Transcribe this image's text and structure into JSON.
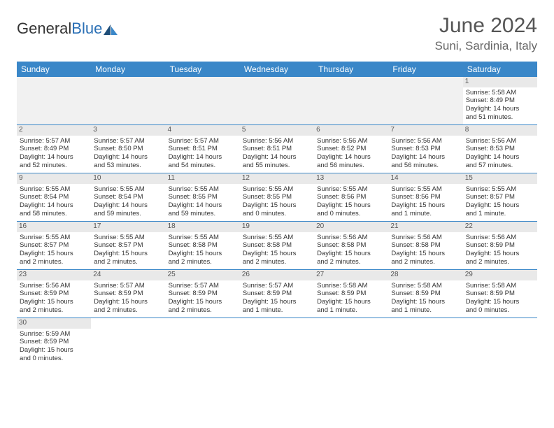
{
  "brand": {
    "part1": "General",
    "part2": "Blue",
    "logo_color": "#2a6fb5"
  },
  "title": "June 2024",
  "location": "Suni, Sardinia, Italy",
  "colors": {
    "header_bg": "#3a87c8",
    "header_text": "#ffffff",
    "daynum_bg": "#e9e9e9",
    "cell_border": "#3a87c8",
    "empty_bg": "#f1f1f1"
  },
  "day_headers": [
    "Sunday",
    "Monday",
    "Tuesday",
    "Wednesday",
    "Thursday",
    "Friday",
    "Saturday"
  ],
  "weeks": [
    [
      {
        "empty": true
      },
      {
        "empty": true
      },
      {
        "empty": true
      },
      {
        "empty": true
      },
      {
        "empty": true
      },
      {
        "empty": true
      },
      {
        "n": "1",
        "sr": "Sunrise: 5:58 AM",
        "ss": "Sunset: 8:49 PM",
        "d1": "Daylight: 14 hours",
        "d2": "and 51 minutes."
      }
    ],
    [
      {
        "n": "2",
        "sr": "Sunrise: 5:57 AM",
        "ss": "Sunset: 8:49 PM",
        "d1": "Daylight: 14 hours",
        "d2": "and 52 minutes."
      },
      {
        "n": "3",
        "sr": "Sunrise: 5:57 AM",
        "ss": "Sunset: 8:50 PM",
        "d1": "Daylight: 14 hours",
        "d2": "and 53 minutes."
      },
      {
        "n": "4",
        "sr": "Sunrise: 5:57 AM",
        "ss": "Sunset: 8:51 PM",
        "d1": "Daylight: 14 hours",
        "d2": "and 54 minutes."
      },
      {
        "n": "5",
        "sr": "Sunrise: 5:56 AM",
        "ss": "Sunset: 8:51 PM",
        "d1": "Daylight: 14 hours",
        "d2": "and 55 minutes."
      },
      {
        "n": "6",
        "sr": "Sunrise: 5:56 AM",
        "ss": "Sunset: 8:52 PM",
        "d1": "Daylight: 14 hours",
        "d2": "and 56 minutes."
      },
      {
        "n": "7",
        "sr": "Sunrise: 5:56 AM",
        "ss": "Sunset: 8:53 PM",
        "d1": "Daylight: 14 hours",
        "d2": "and 56 minutes."
      },
      {
        "n": "8",
        "sr": "Sunrise: 5:56 AM",
        "ss": "Sunset: 8:53 PM",
        "d1": "Daylight: 14 hours",
        "d2": "and 57 minutes."
      }
    ],
    [
      {
        "n": "9",
        "sr": "Sunrise: 5:55 AM",
        "ss": "Sunset: 8:54 PM",
        "d1": "Daylight: 14 hours",
        "d2": "and 58 minutes."
      },
      {
        "n": "10",
        "sr": "Sunrise: 5:55 AM",
        "ss": "Sunset: 8:54 PM",
        "d1": "Daylight: 14 hours",
        "d2": "and 59 minutes."
      },
      {
        "n": "11",
        "sr": "Sunrise: 5:55 AM",
        "ss": "Sunset: 8:55 PM",
        "d1": "Daylight: 14 hours",
        "d2": "and 59 minutes."
      },
      {
        "n": "12",
        "sr": "Sunrise: 5:55 AM",
        "ss": "Sunset: 8:55 PM",
        "d1": "Daylight: 15 hours",
        "d2": "and 0 minutes."
      },
      {
        "n": "13",
        "sr": "Sunrise: 5:55 AM",
        "ss": "Sunset: 8:56 PM",
        "d1": "Daylight: 15 hours",
        "d2": "and 0 minutes."
      },
      {
        "n": "14",
        "sr": "Sunrise: 5:55 AM",
        "ss": "Sunset: 8:56 PM",
        "d1": "Daylight: 15 hours",
        "d2": "and 1 minute."
      },
      {
        "n": "15",
        "sr": "Sunrise: 5:55 AM",
        "ss": "Sunset: 8:57 PM",
        "d1": "Daylight: 15 hours",
        "d2": "and 1 minute."
      }
    ],
    [
      {
        "n": "16",
        "sr": "Sunrise: 5:55 AM",
        "ss": "Sunset: 8:57 PM",
        "d1": "Daylight: 15 hours",
        "d2": "and 2 minutes."
      },
      {
        "n": "17",
        "sr": "Sunrise: 5:55 AM",
        "ss": "Sunset: 8:57 PM",
        "d1": "Daylight: 15 hours",
        "d2": "and 2 minutes."
      },
      {
        "n": "18",
        "sr": "Sunrise: 5:55 AM",
        "ss": "Sunset: 8:58 PM",
        "d1": "Daylight: 15 hours",
        "d2": "and 2 minutes."
      },
      {
        "n": "19",
        "sr": "Sunrise: 5:55 AM",
        "ss": "Sunset: 8:58 PM",
        "d1": "Daylight: 15 hours",
        "d2": "and 2 minutes."
      },
      {
        "n": "20",
        "sr": "Sunrise: 5:56 AM",
        "ss": "Sunset: 8:58 PM",
        "d1": "Daylight: 15 hours",
        "d2": "and 2 minutes."
      },
      {
        "n": "21",
        "sr": "Sunrise: 5:56 AM",
        "ss": "Sunset: 8:58 PM",
        "d1": "Daylight: 15 hours",
        "d2": "and 2 minutes."
      },
      {
        "n": "22",
        "sr": "Sunrise: 5:56 AM",
        "ss": "Sunset: 8:59 PM",
        "d1": "Daylight: 15 hours",
        "d2": "and 2 minutes."
      }
    ],
    [
      {
        "n": "23",
        "sr": "Sunrise: 5:56 AM",
        "ss": "Sunset: 8:59 PM",
        "d1": "Daylight: 15 hours",
        "d2": "and 2 minutes."
      },
      {
        "n": "24",
        "sr": "Sunrise: 5:57 AM",
        "ss": "Sunset: 8:59 PM",
        "d1": "Daylight: 15 hours",
        "d2": "and 2 minutes."
      },
      {
        "n": "25",
        "sr": "Sunrise: 5:57 AM",
        "ss": "Sunset: 8:59 PM",
        "d1": "Daylight: 15 hours",
        "d2": "and 2 minutes."
      },
      {
        "n": "26",
        "sr": "Sunrise: 5:57 AM",
        "ss": "Sunset: 8:59 PM",
        "d1": "Daylight: 15 hours",
        "d2": "and 1 minute."
      },
      {
        "n": "27",
        "sr": "Sunrise: 5:58 AM",
        "ss": "Sunset: 8:59 PM",
        "d1": "Daylight: 15 hours",
        "d2": "and 1 minute."
      },
      {
        "n": "28",
        "sr": "Sunrise: 5:58 AM",
        "ss": "Sunset: 8:59 PM",
        "d1": "Daylight: 15 hours",
        "d2": "and 1 minute."
      },
      {
        "n": "29",
        "sr": "Sunrise: 5:58 AM",
        "ss": "Sunset: 8:59 PM",
        "d1": "Daylight: 15 hours",
        "d2": "and 0 minutes."
      }
    ],
    [
      {
        "n": "30",
        "sr": "Sunrise: 5:59 AM",
        "ss": "Sunset: 8:59 PM",
        "d1": "Daylight: 15 hours",
        "d2": "and 0 minutes."
      },
      {
        "empty": true
      },
      {
        "empty": true
      },
      {
        "empty": true
      },
      {
        "empty": true
      },
      {
        "empty": true
      },
      {
        "empty": true
      }
    ]
  ]
}
